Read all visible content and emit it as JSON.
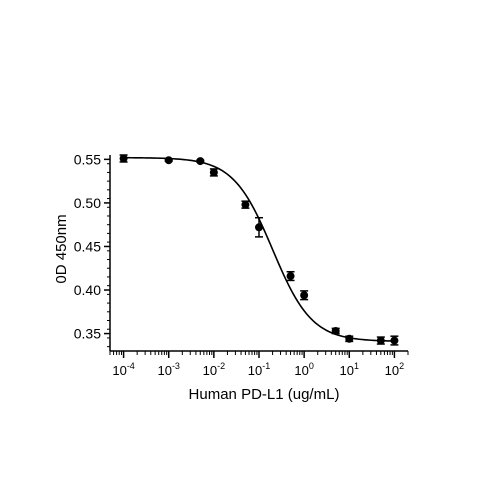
{
  "chart_data": {
    "type": "scatter",
    "title": "",
    "xlabel": "Human PD-L1 (ug/mL)",
    "ylabel": "0D 450nm",
    "x_scale": "log",
    "xlim": [
      5e-05,
      200
    ],
    "ylim": [
      0.33,
      0.555
    ],
    "x_ticks": [
      {
        "value": 0.0001,
        "base": "10",
        "exp": "-4"
      },
      {
        "value": 0.001,
        "base": "10",
        "exp": "-3"
      },
      {
        "value": 0.01,
        "base": "10",
        "exp": "-2"
      },
      {
        "value": 0.1,
        "base": "10",
        "exp": "-1"
      },
      {
        "value": 1,
        "base": "10",
        "exp": "0"
      },
      {
        "value": 10,
        "base": "10",
        "exp": "1"
      },
      {
        "value": 100,
        "base": "10",
        "exp": "2"
      }
    ],
    "y_ticks": [
      {
        "value": 0.35,
        "label": "0.35"
      },
      {
        "value": 0.4,
        "label": "0.40"
      },
      {
        "value": 0.45,
        "label": "0.45"
      },
      {
        "value": 0.5,
        "label": "0.50"
      },
      {
        "value": 0.55,
        "label": "0.55"
      }
    ],
    "grid": false,
    "legend": "none",
    "color": "#000000",
    "series": [
      {
        "points": [
          {
            "x": 0.0001,
            "y": 0.551,
            "err": 0.004
          },
          {
            "x": 0.001,
            "y": 0.549,
            "err": 0.001
          },
          {
            "x": 0.005,
            "y": 0.548,
            "err": 0.001
          },
          {
            "x": 0.01,
            "y": 0.535,
            "err": 0.004
          },
          {
            "x": 0.05,
            "y": 0.498,
            "err": 0.004
          },
          {
            "x": 0.1,
            "y": 0.472,
            "err": 0.011
          },
          {
            "x": 0.5,
            "y": 0.416,
            "err": 0.005
          },
          {
            "x": 1,
            "y": 0.394,
            "err": 0.005
          },
          {
            "x": 5,
            "y": 0.353,
            "err": 0.003
          },
          {
            "x": 10,
            "y": 0.344,
            "err": 0.003
          },
          {
            "x": 50,
            "y": 0.342,
            "err": 0.004
          },
          {
            "x": 100,
            "y": 0.342,
            "err": 0.005
          }
        ],
        "fit": {
          "type": "4PL",
          "top": 0.552,
          "bottom": 0.341,
          "ec50": 0.2,
          "hill": 1.0
        }
      }
    ]
  }
}
